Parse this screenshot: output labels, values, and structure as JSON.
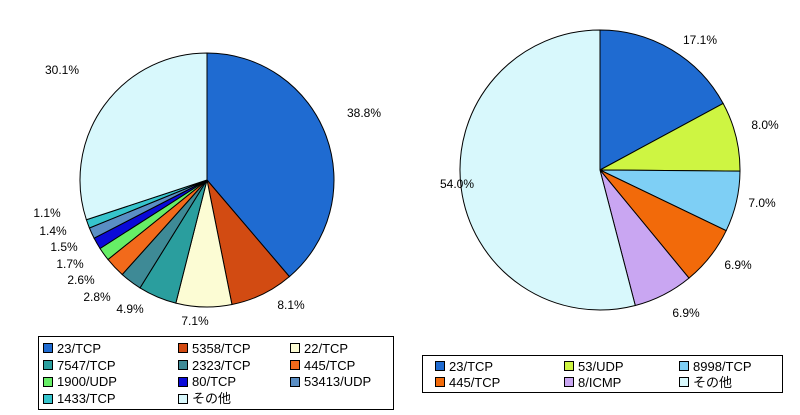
{
  "chart_data": [
    {
      "type": "pie",
      "categories": [
        "23/TCP",
        "5358/TCP",
        "22/TCP",
        "7547/TCP",
        "2323/TCP",
        "445/TCP",
        "1900/UDP",
        "80/TCP",
        "53413/UDP",
        "1433/TCP",
        "その他"
      ],
      "values": [
        38.8,
        8.1,
        7.1,
        4.9,
        2.8,
        2.6,
        1.7,
        1.5,
        1.4,
        1.1,
        30.1
      ],
      "labels": [
        "38.8%",
        "8.1%",
        "7.1%",
        "4.9%",
        "2.8%",
        "2.6%",
        "1.7%",
        "1.5%",
        "1.4%",
        "1.1%",
        "30.1%"
      ],
      "colors": [
        "#1f6bd1",
        "#d24b12",
        "#fcfcd4",
        "#2a9e9e",
        "#3e8a96",
        "#f26a1b",
        "#66ee66",
        "#0a0ad8",
        "#5a8ec4",
        "#36c4cc",
        "#d8f8fc"
      ],
      "start_angle": 0,
      "direction": "clockwise",
      "legend": "bottom"
    },
    {
      "type": "pie",
      "categories": [
        "23/TCP",
        "53/UDP",
        "8998/TCP",
        "445/TCP",
        "8/ICMP",
        "その他"
      ],
      "values": [
        17.1,
        8.0,
        7.0,
        6.9,
        6.9,
        54.0
      ],
      "labels": [
        "17.1%",
        "8.0%",
        "7.0%",
        "6.9%",
        "6.9%",
        "54.0%"
      ],
      "colors": [
        "#1f6bd1",
        "#cef542",
        "#7ecff5",
        "#f26a0a",
        "#c9a6f2",
        "#d8f8fc"
      ],
      "start_angle": 0,
      "direction": "clockwise",
      "legend": "bottom"
    }
  ]
}
